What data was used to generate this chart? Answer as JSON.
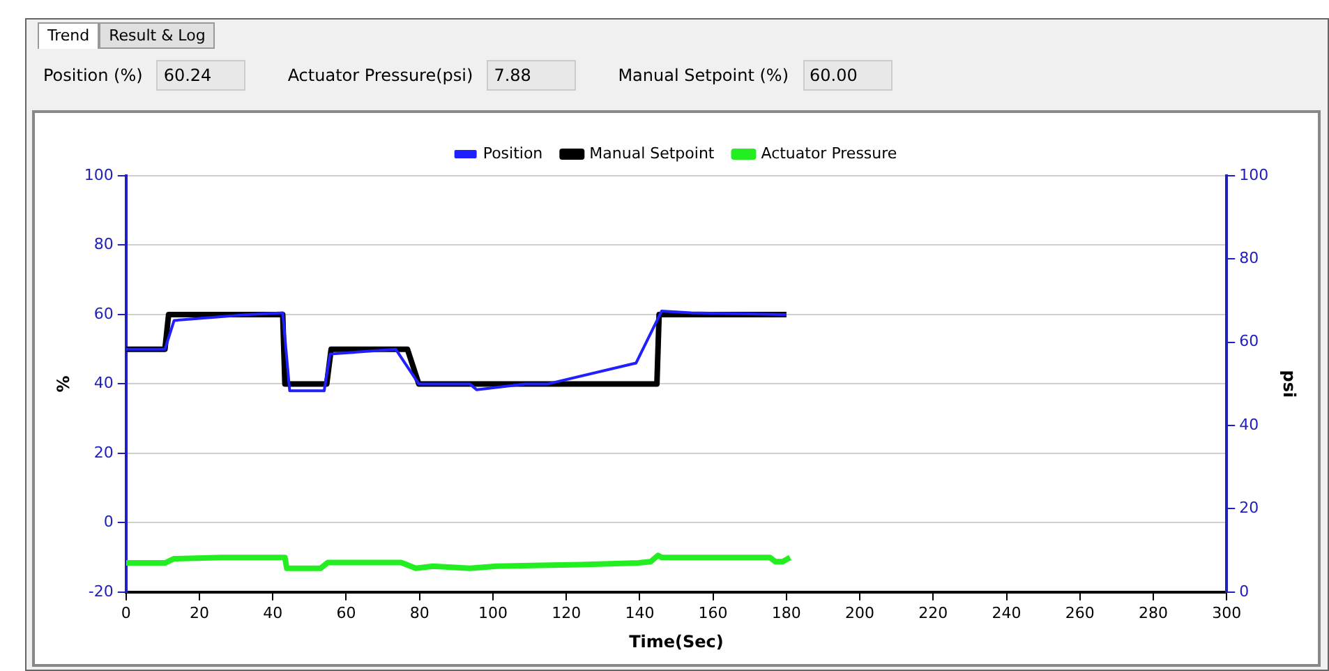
{
  "chart_data": {
    "type": "line",
    "xlabel": "Time(Sec)",
    "ylabel": "%",
    "y2label": "psi",
    "annotations": [
      "Trend",
      "Result & Log",
      "Position (%)",
      "60.24",
      "Actuator Pressure(psi)",
      "7.88",
      "Manual Setpoint (%)",
      "60.00"
    ],
    "xlim": [
      0,
      300
    ],
    "xticks": [
      0,
      20,
      40,
      60,
      80,
      100,
      120,
      140,
      160,
      180,
      200,
      220,
      240,
      260,
      280,
      300
    ],
    "ylim": [
      -20,
      100
    ],
    "yticks": [
      -20,
      0,
      20,
      40,
      60,
      80,
      100
    ],
    "y2lim": [
      0,
      100
    ],
    "y2ticks": [
      0,
      20,
      40,
      60,
      80,
      100
    ],
    "grid": "y",
    "legend": "top",
    "marker": "none",
    "line_style": "solid",
    "series": [
      {
        "name": "Position",
        "color": "#1f1fff",
        "x": [
          0,
          10.6,
          13.1,
          33.2,
          42.7,
          44.6,
          54,
          55.6,
          73.5,
          79.8,
          93.7,
          95.6,
          108.8,
          115,
          139,
          146,
          154,
          180
        ],
        "values": [
          50,
          50,
          58.3,
          60,
          60.5,
          38,
          38,
          48.6,
          50,
          40,
          40,
          38.3,
          40,
          40,
          46,
          61,
          60.5,
          60
        ]
      },
      {
        "name": "Manual Setpoint",
        "color": "#000000",
        "x": [
          0,
          10.6,
          11.6,
          42.7,
          43.3,
          54.7,
          55.9,
          76.7,
          79.8,
          144.7,
          145.3,
          180
        ],
        "values": [
          50,
          50,
          60,
          60,
          40,
          40,
          50,
          50,
          40,
          40,
          60,
          60
        ]
      },
      {
        "name": "Actuator Pressure",
        "color": "#22ee22",
        "axis": "y2",
        "x": [
          0,
          10.6,
          13,
          26,
          43.3,
          43.8,
          53,
          55,
          75,
          79,
          83.6,
          93.7,
          101,
          124,
          139.7,
          143,
          145,
          146,
          175.5,
          177,
          179,
          181
        ],
        "values": [
          7,
          7,
          8,
          8.3,
          8.3,
          5.7,
          5.7,
          7.1,
          7.1,
          5.7,
          6.2,
          5.7,
          6.2,
          6.6,
          7,
          7.3,
          8.8,
          8.3,
          8.3,
          7.3,
          7.3,
          8.3
        ]
      }
    ]
  }
}
